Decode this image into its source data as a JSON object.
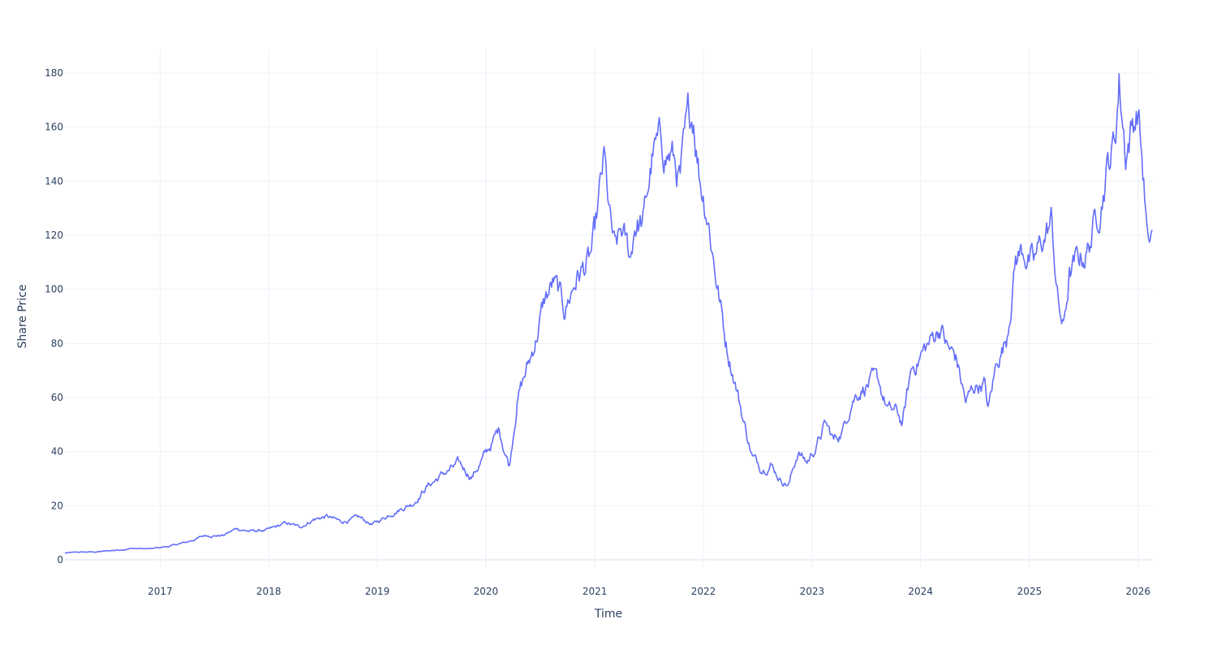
{
  "chart_data": {
    "type": "line",
    "xlabel": "Time",
    "ylabel": "Share Price",
    "xlim": [
      "2016-02-16",
      "2026-02-17"
    ],
    "ylim": [
      -3,
      189
    ],
    "yticks": [
      0,
      20,
      40,
      60,
      80,
      100,
      120,
      140,
      160,
      180
    ],
    "xticks": [
      "2017",
      "2018",
      "2019",
      "2020",
      "2021",
      "2022",
      "2023",
      "2024",
      "2025",
      "2026"
    ],
    "grid": true,
    "legend": "none",
    "line_color": "#636efa",
    "series": [
      {
        "x": [
          "2016-02-16",
          "2016-04-01",
          "2016-06-01",
          "2016-08-01",
          "2016-10-01",
          "2016-12-01",
          "2017-02-01",
          "2017-04-01",
          "2017-06-01",
          "2017-08-01",
          "2017-09-15",
          "2017-11-01",
          "2018-01-01",
          "2018-03-01",
          "2018-04-15",
          "2018-06-01",
          "2018-07-15",
          "2018-09-01",
          "2018-11-01",
          "2018-12-15",
          "2019-01-01",
          "2019-03-01",
          "2019-05-01",
          "2019-06-15",
          "2019-08-15",
          "2019-10-01",
          "2019-11-15",
          "2020-01-01",
          "2020-02-15",
          "2020-03-20",
          "2020-04-15",
          "2020-06-01",
          "2020-07-15",
          "2020-08-15",
          "2020-09-20",
          "2020-11-01",
          "2020-12-15",
          "2021-01-01",
          "2021-02-01",
          "2021-02-20",
          "2021-03-10",
          "2021-04-01",
          "2021-05-01",
          "2021-05-15",
          "2021-06-15",
          "2021-07-15",
          "2021-08-15",
          "2021-09-15",
          "2021-10-15",
          "2021-11-10",
          "2021-11-29",
          "2021-12-20",
          "2022-01-15",
          "2022-02-01",
          "2022-03-15",
          "2022-04-15",
          "2022-05-15",
          "2022-06-15",
          "2022-07-15",
          "2022-08-15",
          "2022-09-15",
          "2022-10-15",
          "2022-11-15",
          "2022-12-15",
          "2023-01-15",
          "2023-02-15",
          "2023-03-15",
          "2023-04-15",
          "2023-05-15",
          "2023-06-15",
          "2023-07-15",
          "2023-08-15",
          "2023-09-15",
          "2023-10-15",
          "2023-11-01",
          "2023-12-01",
          "2024-01-01",
          "2024-02-01",
          "2024-03-08",
          "2024-04-01",
          "2024-05-01",
          "2024-06-01",
          "2024-07-01",
          "2024-08-01",
          "2024-08-15",
          "2024-09-15",
          "2024-10-15",
          "2024-11-15",
          "2024-12-15",
          "2025-01-15",
          "2025-02-15",
          "2025-03-15",
          "2025-04-07",
          "2025-04-25",
          "2025-05-15",
          "2025-06-15",
          "2025-07-15",
          "2025-08-15",
          "2025-09-15",
          "2025-10-15",
          "2025-10-29",
          "2025-11-20",
          "2025-12-10",
          "2026-01-01",
          "2026-01-20",
          "2026-02-05",
          "2026-02-17"
        ],
        "y": [
          2.5,
          2.8,
          2.9,
          3.5,
          4.2,
          4.0,
          5.0,
          6.5,
          9.0,
          9.0,
          11.5,
          10.5,
          11.0,
          13.5,
          12.0,
          15.0,
          16.0,
          14.0,
          15.5,
          13.0,
          14.0,
          18.0,
          21.0,
          27.0,
          32.0,
          35.0,
          31.0,
          39.0,
          48.0,
          35.0,
          60.0,
          75.0,
          95.0,
          102.0,
          92.0,
          105.0,
          110.0,
          118.0,
          146.0,
          125.0,
          112.0,
          120.0,
          111.0,
          125.0,
          125.0,
          150.0,
          152.0,
          150.0,
          140.0,
          158.0,
          165.0,
          143.0,
          130.0,
          115.0,
          82.0,
          68.0,
          52.0,
          38.0,
          34.0,
          36.0,
          30.0,
          28.0,
          40.0,
          36.0,
          42.0,
          50.0,
          44.0,
          48.0,
          60.0,
          64.0,
          66.0,
          64.0,
          55.0,
          54.0,
          50.0,
          70.0,
          76.0,
          80.0,
          87.0,
          78.0,
          74.0,
          58.0,
          64.0,
          66.0,
          55.0,
          74.0,
          82.0,
          112.0,
          115.0,
          108.0,
          118.0,
          125.0,
          95.0,
          85.0,
          105.0,
          110.0,
          115.0,
          127.0,
          145.0,
          155.0,
          178.0,
          152.0,
          160.0,
          168.0,
          140.0,
          112.0,
          122.0
        ]
      }
    ]
  }
}
